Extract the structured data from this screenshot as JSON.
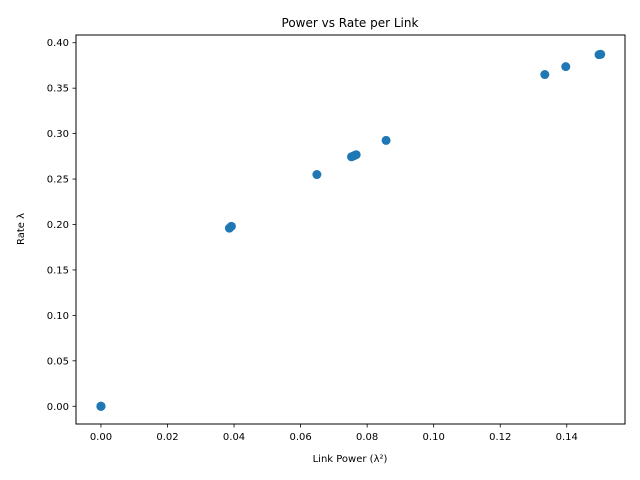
{
  "chart_data": {
    "type": "scatter",
    "title": "Power vs Rate per Link",
    "xlabel": "Link Power (λ²)",
    "ylabel": "Rate λ",
    "xlim": [
      -0.0075,
      0.1575
    ],
    "ylim": [
      -0.0195,
      0.4085
    ],
    "x_ticks": [
      "0.00",
      "0.02",
      "0.04",
      "0.06",
      "0.08",
      "0.10",
      "0.12",
      "0.14"
    ],
    "x_tick_values": [
      0,
      0.02,
      0.04,
      0.06,
      0.08,
      0.1,
      0.12,
      0.14
    ],
    "y_ticks": [
      "0.00",
      "0.05",
      "0.10",
      "0.15",
      "0.20",
      "0.25",
      "0.30",
      "0.35",
      "0.40"
    ],
    "y_tick_values": [
      0,
      0.05,
      0.1,
      0.15,
      0.2,
      0.25,
      0.3,
      0.35,
      0.4
    ],
    "grid": false,
    "series": [
      {
        "color": "#1f77b4",
        "points": [
          {
            "x": 0.0,
            "y": 0.0
          },
          {
            "x": 0.0,
            "y": 0.0
          },
          {
            "x": 0.0,
            "y": 0.0
          },
          {
            "x": 0.0386,
            "y": 0.196
          },
          {
            "x": 0.0392,
            "y": 0.198
          },
          {
            "x": 0.0649,
            "y": 0.255
          },
          {
            "x": 0.0753,
            "y": 0.2745
          },
          {
            "x": 0.076,
            "y": 0.2756
          },
          {
            "x": 0.0767,
            "y": 0.2768
          },
          {
            "x": 0.0857,
            "y": 0.2925
          },
          {
            "x": 0.1334,
            "y": 0.365
          },
          {
            "x": 0.1397,
            "y": 0.3737
          },
          {
            "x": 0.1497,
            "y": 0.3869
          },
          {
            "x": 0.1502,
            "y": 0.3873
          }
        ]
      }
    ]
  }
}
